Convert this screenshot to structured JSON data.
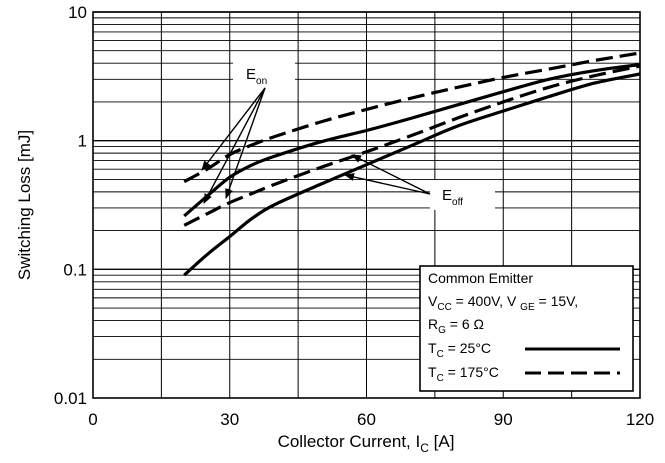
{
  "chart_data": {
    "type": "line",
    "title": "",
    "xlabel": "Collector Current, I",
    "xlabel_sub": "C",
    "xlabel_unit": "[A]",
    "ylabel": "Switching Loss [mJ]",
    "xlim": [
      0,
      120
    ],
    "ylim": [
      0.01,
      10
    ],
    "yscale": "log",
    "grid": true,
    "x_ticks": [
      "0",
      "30",
      "60",
      "90",
      "120"
    ],
    "y_ticks": [
      "10",
      "1",
      "0.1",
      "0.01"
    ],
    "series": [
      {
        "name": "Eon, TC = 25°C",
        "style": "solid",
        "x": [
          20,
          25,
          30,
          35,
          40,
          50,
          60,
          70,
          80,
          90,
          100,
          110,
          120
        ],
        "y": [
          0.26,
          0.37,
          0.52,
          0.65,
          0.76,
          0.98,
          1.2,
          1.5,
          1.9,
          2.4,
          3.0,
          3.5,
          3.9
        ]
      },
      {
        "name": "Eon, TC = 175°C",
        "style": "dashed",
        "x": [
          20,
          25,
          30,
          35,
          40,
          50,
          60,
          70,
          80,
          90,
          100,
          110,
          120
        ],
        "y": [
          0.48,
          0.6,
          0.78,
          0.93,
          1.08,
          1.4,
          1.75,
          2.15,
          2.6,
          3.1,
          3.6,
          4.2,
          4.8
        ]
      },
      {
        "name": "Eoff, TC = 25°C",
        "style": "solid",
        "x": [
          20,
          25,
          30,
          35,
          40,
          50,
          60,
          70,
          80,
          90,
          100,
          110,
          120
        ],
        "y": [
          0.09,
          0.13,
          0.18,
          0.25,
          0.32,
          0.46,
          0.65,
          0.92,
          1.3,
          1.7,
          2.2,
          2.8,
          3.3
        ]
      },
      {
        "name": "Eoff, TC = 175°C",
        "style": "dashed",
        "x": [
          20,
          25,
          30,
          35,
          40,
          50,
          60,
          70,
          80,
          90,
          100,
          110,
          120
        ],
        "y": [
          0.22,
          0.27,
          0.33,
          0.39,
          0.46,
          0.62,
          0.82,
          1.1,
          1.5,
          2.0,
          2.6,
          3.2,
          3.8
        ]
      }
    ],
    "annotations": {
      "eon": {
        "main": "E",
        "sub": "on"
      },
      "eoff": {
        "main": "E",
        "sub": "off"
      }
    },
    "legend": {
      "position": "bottom-right",
      "line1": "Common Emitter",
      "line2_a": "V",
      "line2_a_sub": "CC",
      "line2_b": " = 400V, V ",
      "line2_b_sub": "GE",
      "line2_c": " = 15V,",
      "line3_a": "R",
      "line3_a_sub": "G",
      "line3_b": " = 6 Ω",
      "entries": [
        {
          "t": "T",
          "sub": "C",
          "rest": " = 25°C",
          "style": "solid"
        },
        {
          "t": "T",
          "sub": "C",
          "rest": " = 175°C",
          "style": "dashed"
        }
      ]
    }
  }
}
